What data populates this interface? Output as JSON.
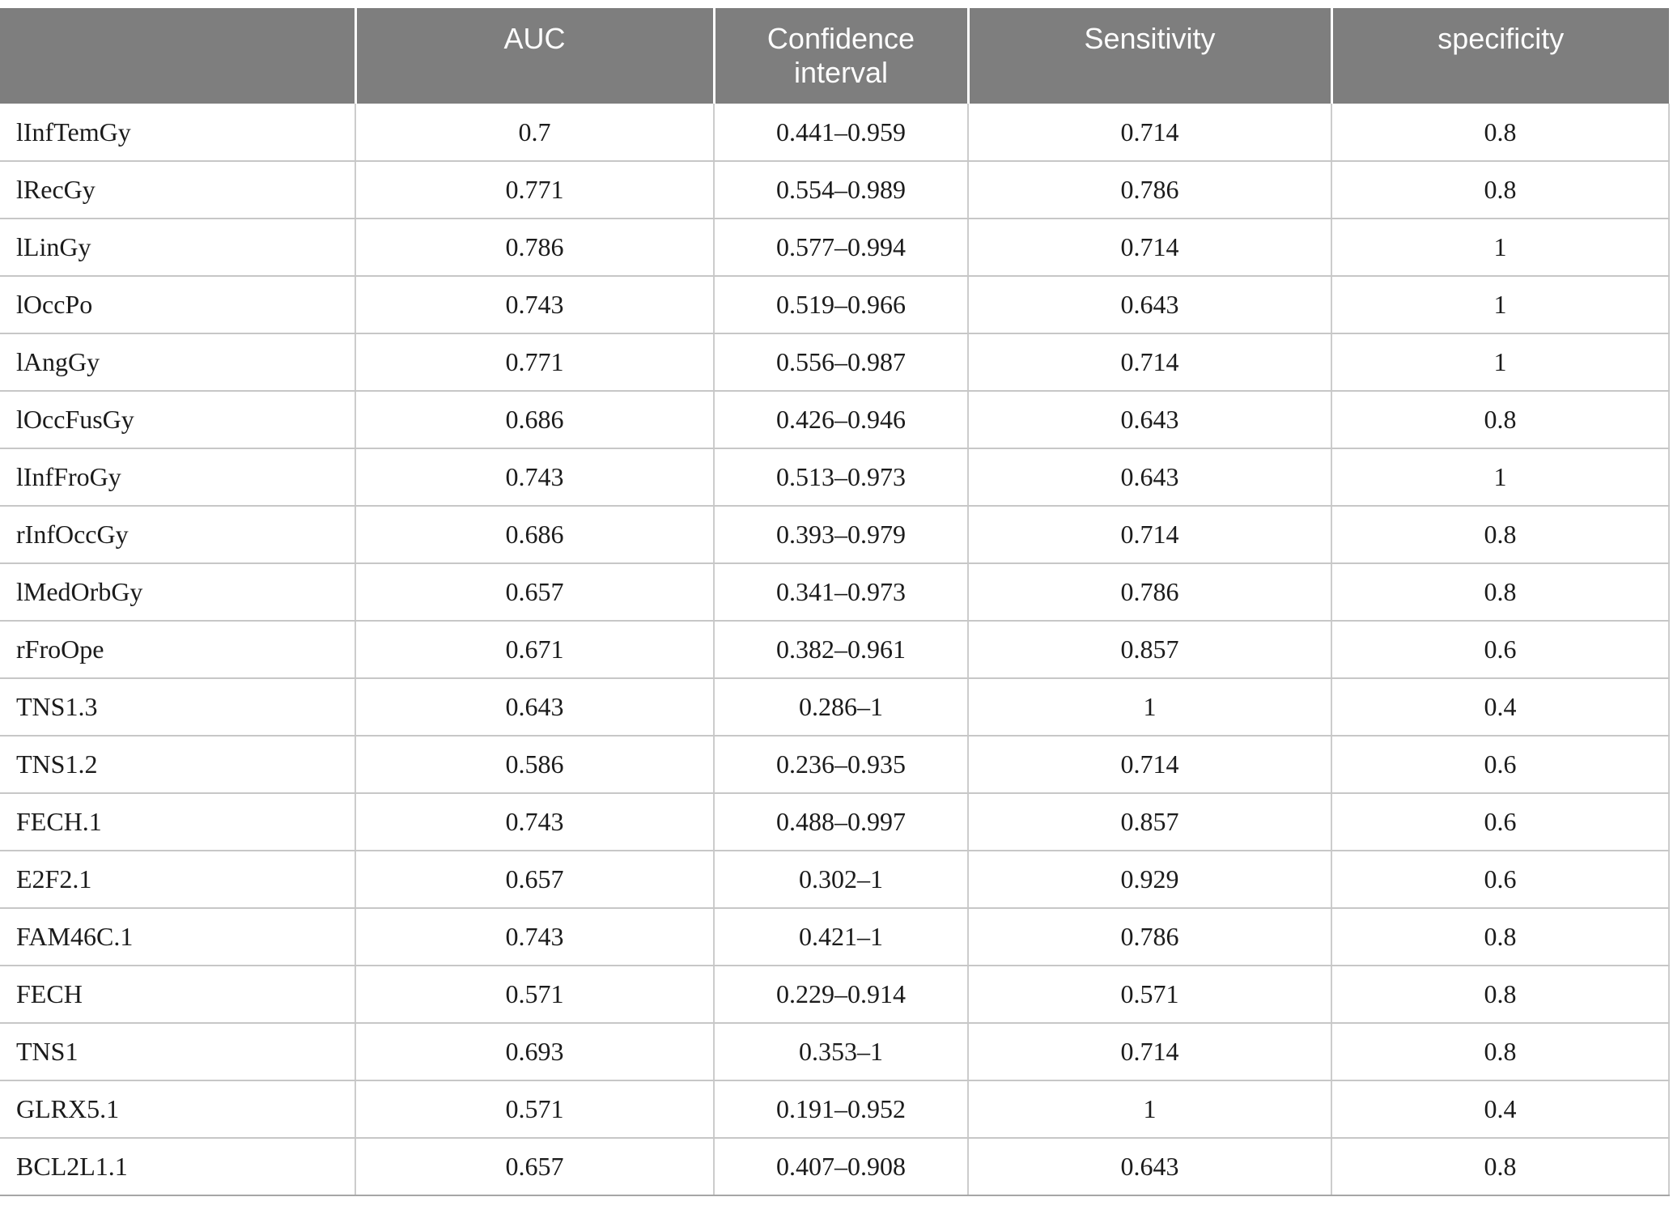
{
  "style": {
    "header_bg": "#7e7e7e",
    "header_text": "#fdfdfd",
    "body_text": "#1b1b1b",
    "grid_line": "#c7c7c7"
  },
  "table": {
    "columns": [
      "",
      "AUC",
      "Confidence interval",
      "Sensitivity",
      "specificity"
    ],
    "column_keys": [
      "label",
      "auc",
      "confidence_interval",
      "sensitivity",
      "specificity"
    ],
    "rows": [
      {
        "label": "lInfTemGy",
        "auc": "0.7",
        "confidence_interval": "0.441–0.959",
        "sensitivity": "0.714",
        "specificity": "0.8"
      },
      {
        "label": "lRecGy",
        "auc": "0.771",
        "confidence_interval": "0.554–0.989",
        "sensitivity": "0.786",
        "specificity": "0.8"
      },
      {
        "label": "lLinGy",
        "auc": "0.786",
        "confidence_interval": "0.577–0.994",
        "sensitivity": "0.714",
        "specificity": "1"
      },
      {
        "label": "lOccPo",
        "auc": "0.743",
        "confidence_interval": "0.519–0.966",
        "sensitivity": "0.643",
        "specificity": "1"
      },
      {
        "label": "lAngGy",
        "auc": "0.771",
        "confidence_interval": "0.556–0.987",
        "sensitivity": "0.714",
        "specificity": "1"
      },
      {
        "label": "lOccFusGy",
        "auc": "0.686",
        "confidence_interval": "0.426–0.946",
        "sensitivity": "0.643",
        "specificity": "0.8"
      },
      {
        "label": "lInfFroGy",
        "auc": "0.743",
        "confidence_interval": "0.513–0.973",
        "sensitivity": "0.643",
        "specificity": "1"
      },
      {
        "label": "rInfOccGy",
        "auc": "0.686",
        "confidence_interval": "0.393–0.979",
        "sensitivity": "0.714",
        "specificity": "0.8"
      },
      {
        "label": "lMedOrbGy",
        "auc": "0.657",
        "confidence_interval": "0.341–0.973",
        "sensitivity": "0.786",
        "specificity": "0.8"
      },
      {
        "label": "rFroOpe",
        "auc": "0.671",
        "confidence_interval": "0.382–0.961",
        "sensitivity": "0.857",
        "specificity": "0.6"
      },
      {
        "label": "TNS1.3",
        "auc": "0.643",
        "confidence_interval": "0.286–1",
        "sensitivity": "1",
        "specificity": "0.4"
      },
      {
        "label": "TNS1.2",
        "auc": "0.586",
        "confidence_interval": "0.236–0.935",
        "sensitivity": "0.714",
        "specificity": "0.6"
      },
      {
        "label": "FECH.1",
        "auc": "0.743",
        "confidence_interval": "0.488–0.997",
        "sensitivity": "0.857",
        "specificity": "0.6"
      },
      {
        "label": "E2F2.1",
        "auc": "0.657",
        "confidence_interval": "0.302–1",
        "sensitivity": "0.929",
        "specificity": "0.6"
      },
      {
        "label": "FAM46C.1",
        "auc": "0.743",
        "confidence_interval": "0.421–1",
        "sensitivity": "0.786",
        "specificity": "0.8"
      },
      {
        "label": "FECH",
        "auc": "0.571",
        "confidence_interval": "0.229–0.914",
        "sensitivity": "0.571",
        "specificity": "0.8"
      },
      {
        "label": "TNS1",
        "auc": "0.693",
        "confidence_interval": "0.353–1",
        "sensitivity": "0.714",
        "specificity": "0.8"
      },
      {
        "label": "GLRX5.1",
        "auc": "0.571",
        "confidence_interval": "0.191–0.952",
        "sensitivity": "1",
        "specificity": "0.4"
      },
      {
        "label": "BCL2L1.1",
        "auc": "0.657",
        "confidence_interval": "0.407–0.908",
        "sensitivity": "0.643",
        "specificity": "0.8"
      }
    ]
  }
}
